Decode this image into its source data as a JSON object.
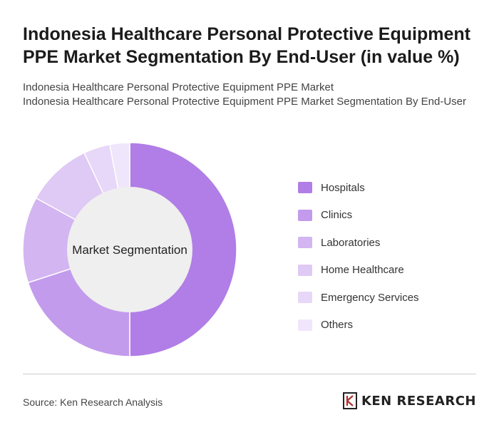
{
  "header": {
    "title": "Indonesia Healthcare Personal Protective Equipment PPE Market Segmentation By End-User (in value %)",
    "subtitle_line1": "Indonesia Healthcare Personal Protective Equipment PPE Market",
    "subtitle_line2": "Indonesia Healthcare Personal Protective Equipment PPE Market Segmentation By End-User"
  },
  "chart_data": {
    "type": "pie",
    "title": "Indonesia Healthcare Personal Protective Equipment PPE Market Segmentation By End-User (in value %)",
    "center_label": "Market Segmentation",
    "categories": [
      "Hospitals",
      "Clinics",
      "Laboratories",
      "Home Healthcare",
      "Emergency Services",
      "Others"
    ],
    "values": [
      50,
      20,
      13,
      10,
      4,
      3
    ],
    "colors": [
      "#b07ee6",
      "#c39bec",
      "#d3b5f1",
      "#dfc9f5",
      "#e7d7f8",
      "#efe6fb"
    ],
    "legend_position": "right"
  },
  "footer": {
    "source": "Source: Ken Research Analysis",
    "brand": "KEN RESEARCH"
  }
}
